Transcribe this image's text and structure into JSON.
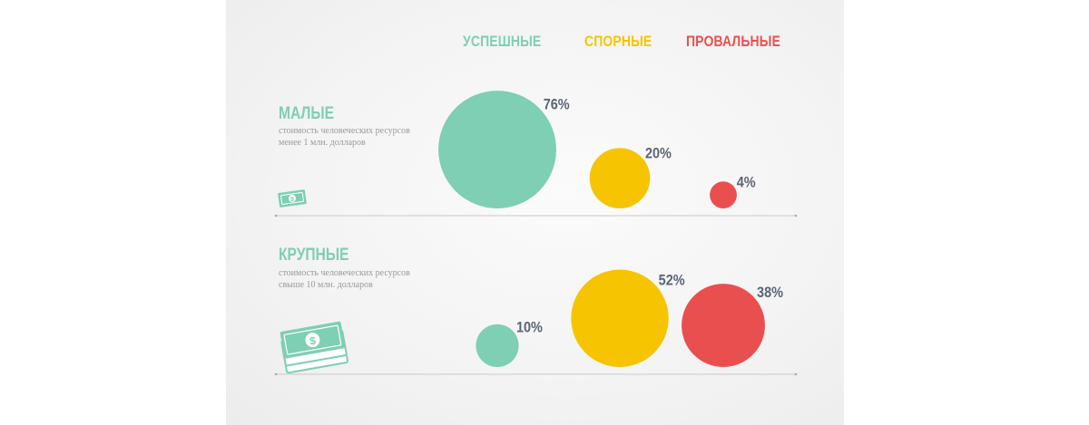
{
  "legend": [
    {
      "label": "УСПЕШНЫЕ",
      "color": "#7ecfb3"
    },
    {
      "label": "СПОРНЫЕ",
      "color": "#f6c400"
    },
    {
      "label": "ПРОВАЛЬНЫЕ",
      "color": "#ea4f4f"
    }
  ],
  "rows": [
    {
      "title": "МАЛЫЕ",
      "description": "стоимость человеческих ресурсов менее 1 млн. долларов",
      "icon": "single-banknote-icon"
    },
    {
      "title": "КРУПНЫЕ",
      "description": "стоимость человеческих ресурсов свыше 10 млн. долларов",
      "icon": "banknote-stack-icon"
    }
  ],
  "chart_data": {
    "type": "bubble",
    "categories": [
      "УСПЕШНЫЕ",
      "СПОРНЫЕ",
      "ПРОВАЛЬНЫЕ"
    ],
    "unit": "%",
    "series": [
      {
        "name": "МАЛЫЕ",
        "values": [
          76,
          20,
          4
        ],
        "labels": [
          "76%",
          "20%",
          "4%"
        ]
      },
      {
        "name": "КРУПНЫЕ",
        "values": [
          10,
          52,
          38
        ],
        "labels": [
          "10%",
          "52%",
          "38%"
        ]
      }
    ],
    "colors": [
      "#7ecfb3",
      "#f6c400",
      "#ea4f4f"
    ]
  }
}
